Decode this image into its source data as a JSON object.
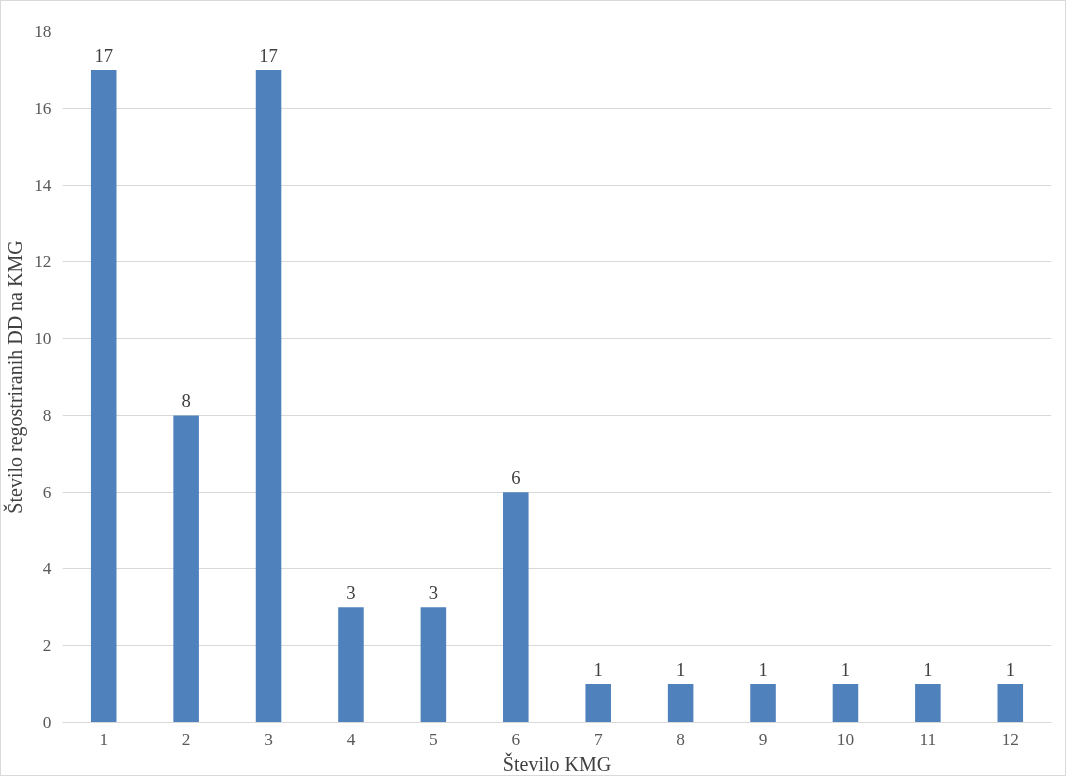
{
  "chart_data": {
    "type": "bar",
    "xlabel": "Število KMG",
    "ylabel": "Število regostriranih DD na KMG",
    "x": [
      1,
      2,
      3,
      4,
      5,
      6,
      7,
      8,
      9,
      10,
      11,
      12
    ],
    "values": [
      17,
      8,
      17,
      3,
      3,
      6,
      1,
      1,
      1,
      1,
      1,
      1
    ],
    "color": "#4f81bd",
    "xlim": [
      0.5,
      12.5
    ],
    "xticks": [
      1,
      2,
      3,
      4,
      5,
      6,
      7,
      8,
      9,
      10,
      11,
      12
    ],
    "ylim": [
      0,
      18
    ],
    "yticks": [
      0,
      2,
      4,
      6,
      8,
      10,
      12,
      14,
      16,
      18
    ],
    "grid": "y",
    "data_labels": true
  }
}
